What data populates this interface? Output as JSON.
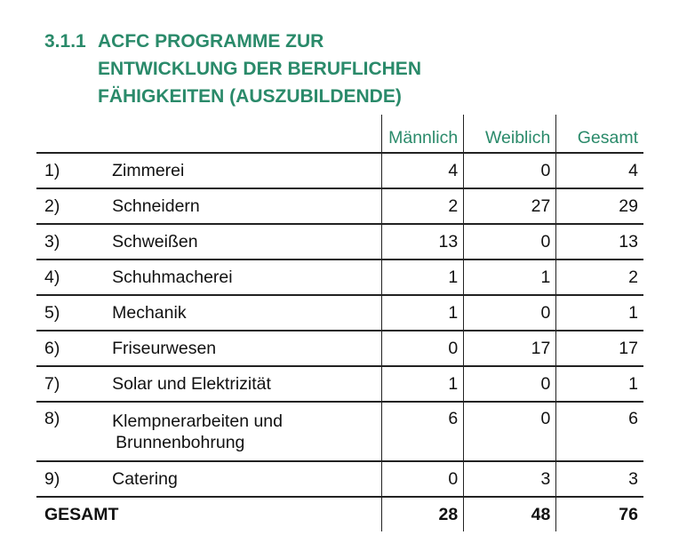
{
  "heading": {
    "number": "3.1.1",
    "line1": "ACFC PROGRAMME ZUR",
    "line2": "ENTWICKLUNG DER BERUFLICHEN",
    "line3": "FÄHIGKEITEN (AUSZUBILDENDE)"
  },
  "columns": {
    "male": "Männlich",
    "female": "Weiblich",
    "total": "Gesamt"
  },
  "rows": [
    {
      "idx": "1)",
      "name": "Zimmerei",
      "male": "4",
      "female": "0",
      "total": "4"
    },
    {
      "idx": "2)",
      "name": "Schneidern",
      "male": "2",
      "female": "27",
      "total": "29"
    },
    {
      "idx": "3)",
      "name": "Schweißen",
      "male": "13",
      "female": "0",
      "total": "13"
    },
    {
      "idx": "4)",
      "name": "Schuhmacherei",
      "male": "1",
      "female": "1",
      "total": "2"
    },
    {
      "idx": "5)",
      "name": "Mechanik",
      "male": "1",
      "female": "0",
      "total": "1"
    },
    {
      "idx": "6)",
      "name": "Friseurwesen",
      "male": "0",
      "female": "17",
      "total": "17"
    },
    {
      "idx": "7)",
      "name": "Solar und Elektrizität",
      "male": "1",
      "female": "0",
      "total": "1"
    },
    {
      "idx": "8)",
      "name": "Klempnerarbeiten und",
      "name2": "Brunnenbohrung",
      "male": "6",
      "female": "0",
      "total": "6"
    },
    {
      "idx": "9)",
      "name": "Catering",
      "male": "0",
      "female": "3",
      "total": "3"
    }
  ],
  "totals": {
    "label": "GESAMT",
    "male": "28",
    "female": "48",
    "total": "76"
  }
}
